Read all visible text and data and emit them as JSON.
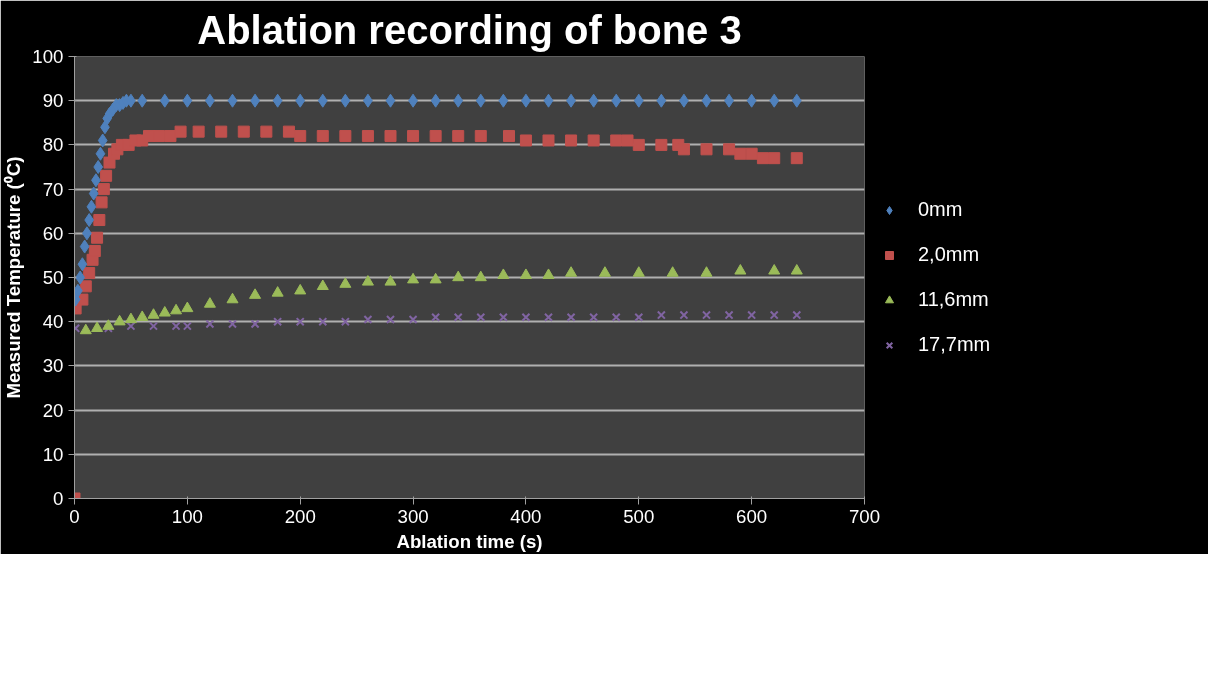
{
  "chart_data": {
    "type": "scatter",
    "title": "Ablation recording of bone 3",
    "xlabel": "Ablation time (s)",
    "ylabel": "Measured Temperature (⁰C)",
    "xlim": [
      0,
      700
    ],
    "xticks": [
      0,
      100,
      200,
      300,
      400,
      500,
      600,
      700
    ],
    "ylim": [
      0,
      100
    ],
    "yticks": [
      0,
      10,
      20,
      30,
      40,
      50,
      60,
      70,
      80,
      90,
      100
    ],
    "grid": "y",
    "legend": "right",
    "series": [
      {
        "name": "0mm",
        "color": "#4f81bd",
        "marker": "diamond",
        "x": [
          1,
          3,
          5,
          7,
          9,
          11,
          13,
          15,
          17,
          19,
          21,
          23,
          25,
          27,
          29,
          31,
          34,
          37,
          40,
          43,
          46,
          50,
          60,
          80,
          100,
          120,
          140,
          160,
          180,
          200,
          220,
          240,
          260,
          280,
          300,
          320,
          340,
          360,
          380,
          400,
          420,
          440,
          460,
          480,
          500,
          520,
          540,
          560,
          580,
          600,
          620,
          640
        ],
        "values": [
          45,
          47,
          50,
          53,
          57,
          60,
          63,
          66,
          69,
          72,
          75,
          78,
          81,
          84,
          86,
          87,
          88,
          89,
          89,
          89.5,
          90,
          90,
          90,
          90,
          90,
          90,
          90,
          90,
          90,
          90,
          90,
          90,
          90,
          90,
          90,
          90,
          90,
          90,
          90,
          90,
          90,
          90,
          90,
          90,
          90,
          90,
          90,
          90,
          90,
          90,
          90,
          90
        ]
      },
      {
        "name": "2,0mm",
        "color": "#c0504d",
        "marker": "square",
        "x": [
          0,
          1,
          7,
          10,
          13,
          16,
          18,
          20,
          22,
          24,
          26,
          28,
          31,
          35,
          38,
          42,
          48,
          54,
          60,
          66,
          75,
          85,
          94,
          110,
          130,
          150,
          170,
          190,
          200,
          220,
          240,
          260,
          280,
          300,
          320,
          340,
          360,
          385,
          400,
          420,
          440,
          460,
          480,
          490,
          500,
          520,
          535,
          540,
          560,
          580,
          590,
          600,
          610,
          620,
          640
        ],
        "values": [
          0,
          43,
          45,
          48,
          51,
          54,
          56,
          59,
          63,
          67,
          70,
          73,
          76,
          78,
          79,
          80,
          80,
          81,
          81,
          82,
          82,
          82,
          83,
          83,
          83,
          83,
          83,
          83,
          82,
          82,
          82,
          82,
          82,
          82,
          82,
          82,
          82,
          82,
          81,
          81,
          81,
          81,
          81,
          81,
          80,
          80,
          80,
          79,
          79,
          79,
          78,
          78,
          77,
          77,
          77
        ]
      },
      {
        "name": "11,6mm",
        "color": "#9bbb59",
        "marker": "triangle",
        "x": [
          10,
          20,
          30,
          40,
          50,
          60,
          70,
          80,
          90,
          100,
          120,
          140,
          160,
          180,
          200,
          220,
          240,
          260,
          280,
          300,
          320,
          340,
          360,
          380,
          400,
          420,
          440,
          470,
          500,
          530,
          560,
          590,
          620,
          640
        ],
        "values": [
          38,
          38.5,
          39,
          40,
          40.5,
          41,
          41.5,
          42,
          42.5,
          43,
          44,
          45,
          46,
          46.5,
          47,
          48,
          48.5,
          49,
          49,
          49.5,
          49.5,
          50,
          50,
          50.5,
          50.5,
          50.5,
          51,
          51,
          51,
          51,
          51,
          51.5,
          51.5,
          51.5
        ]
      },
      {
        "name": "17,7mm",
        "color": "#8064a2",
        "marker": "cross",
        "x": [
          1,
          30,
          50,
          70,
          90,
          100,
          120,
          140,
          160,
          180,
          200,
          220,
          240,
          260,
          280,
          300,
          320,
          340,
          360,
          380,
          400,
          420,
          440,
          460,
          480,
          500,
          520,
          540,
          560,
          580,
          600,
          620,
          640
        ],
        "values": [
          38.5,
          38.5,
          39,
          39,
          39,
          39,
          39.5,
          39.5,
          39.5,
          40,
          40,
          40,
          40,
          40.5,
          40.5,
          40.5,
          41,
          41,
          41,
          41,
          41,
          41,
          41,
          41,
          41,
          41,
          41.5,
          41.5,
          41.5,
          41.5,
          41.5,
          41.5,
          41.5
        ]
      }
    ]
  }
}
